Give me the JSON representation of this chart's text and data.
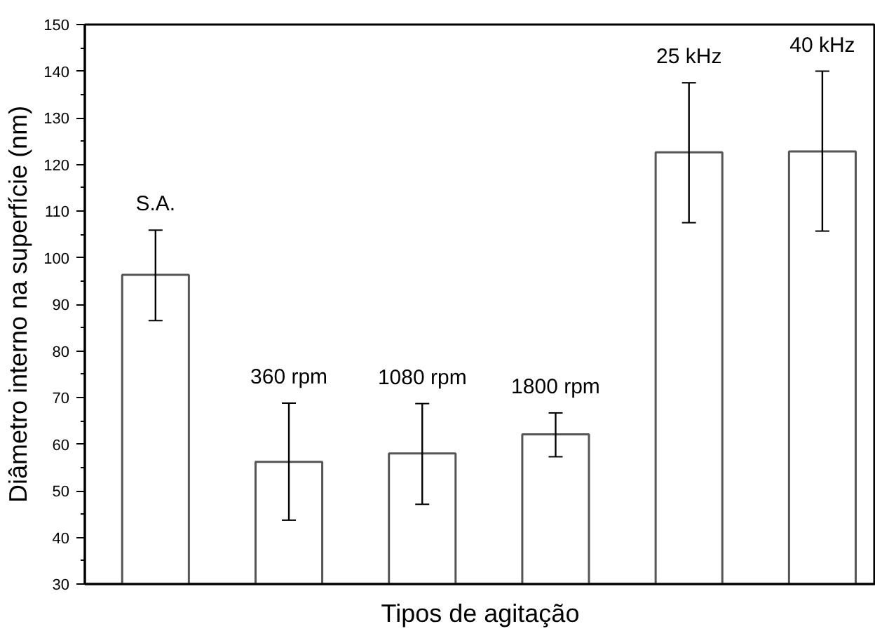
{
  "chart_data": {
    "type": "bar",
    "xlabel": "Tipos de agitação",
    "ylabel": "Diâmetro interno na superfície (nm)",
    "categories": [
      "S.A.",
      "360 rpm",
      "1080 rpm",
      "1800 rpm",
      "25 kHz",
      "40 kHz"
    ],
    "values": [
      96.3,
      56.2,
      58.0,
      62.1,
      122.6,
      122.8
    ],
    "errors": [
      [
        86.5,
        105.9
      ],
      [
        43.7,
        68.8
      ],
      [
        47.1,
        68.7
      ],
      [
        57.3,
        66.7
      ],
      [
        107.5,
        137.5
      ],
      [
        105.7,
        140.0
      ]
    ],
    "color": "#ffffff",
    "ylim": [
      30,
      150
    ],
    "yticks": [
      30,
      40,
      50,
      60,
      70,
      80,
      90,
      100,
      110,
      120,
      130,
      140,
      150
    ],
    "tick_labels": "y",
    "grid": false
  }
}
